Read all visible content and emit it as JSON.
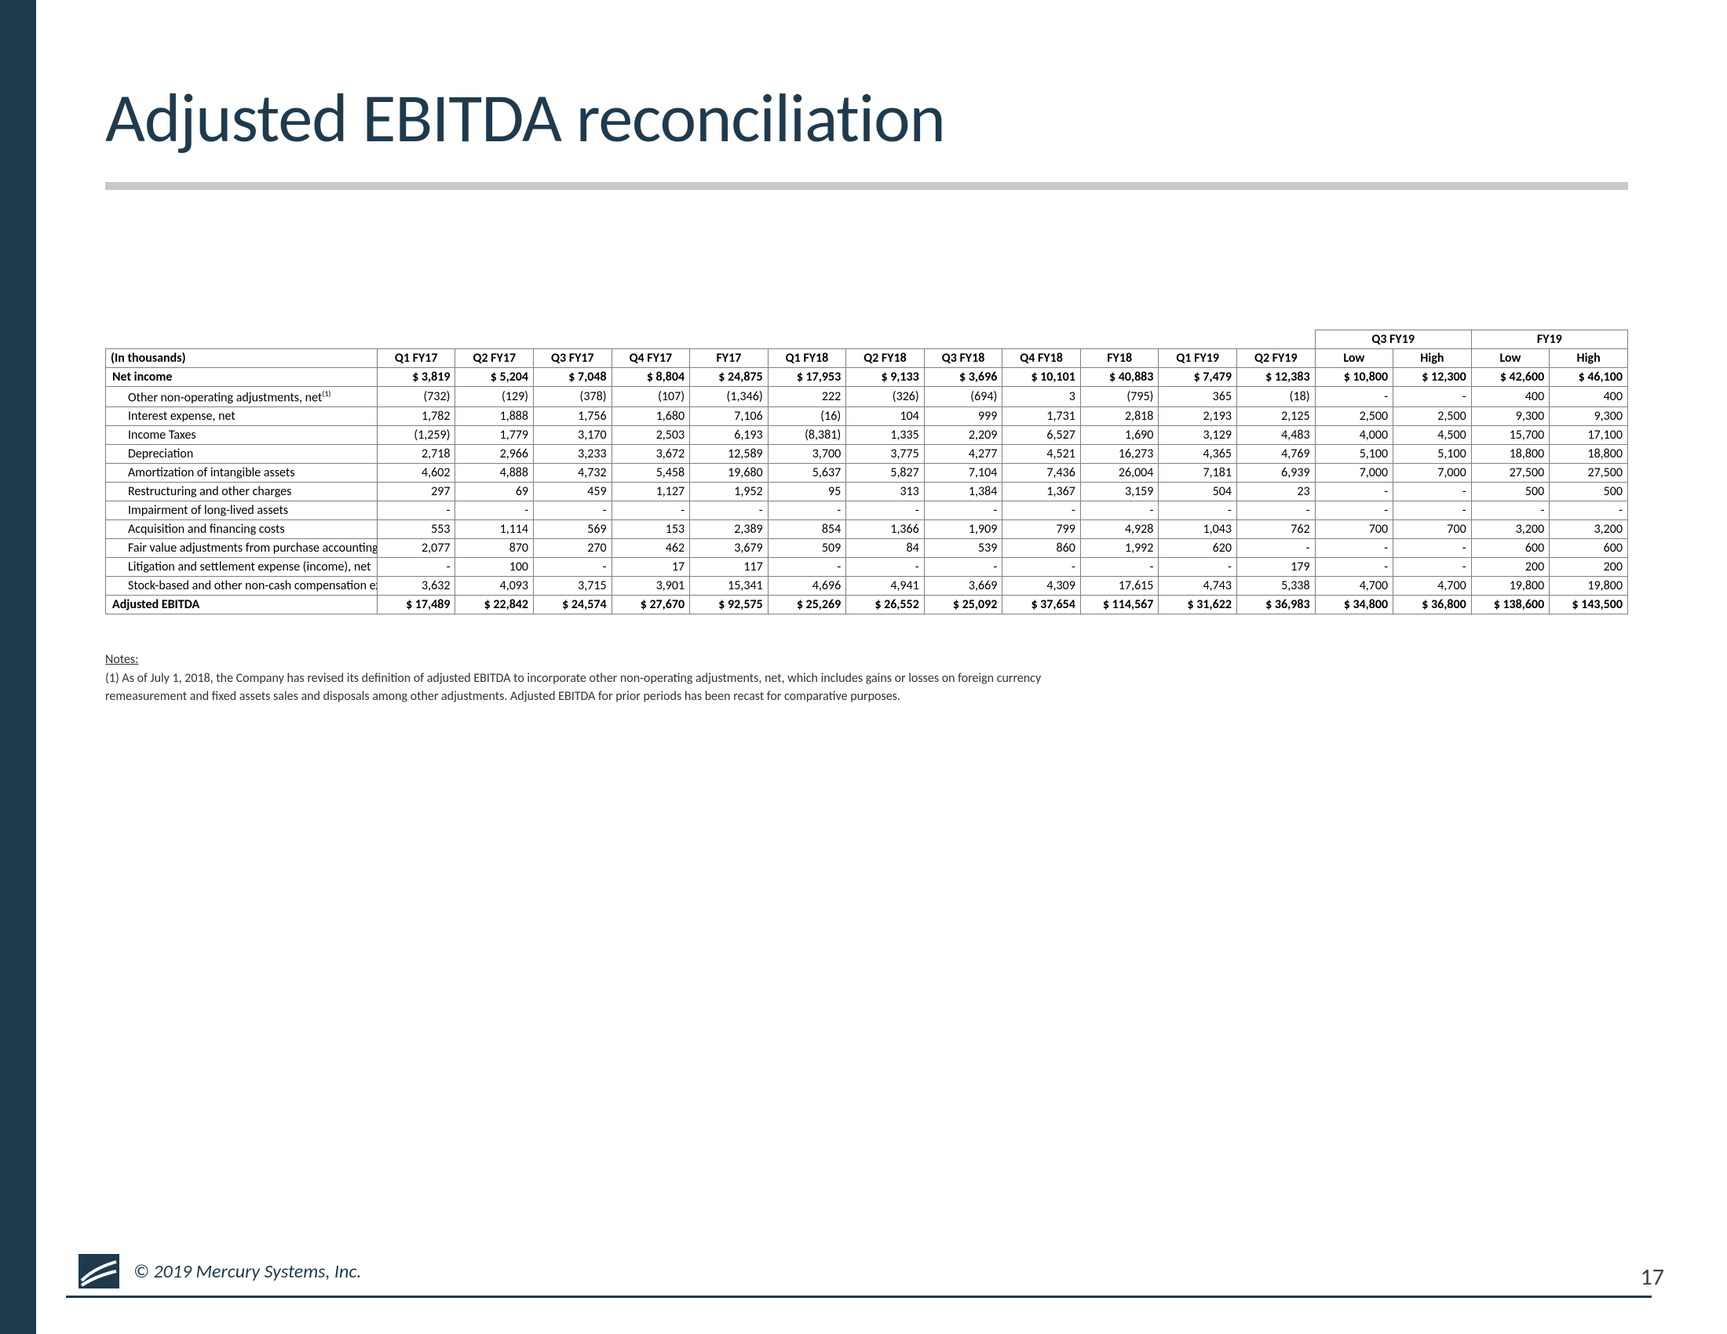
{
  "title": "Adjusted EBITDA reconciliation",
  "accent_color": "#1f3a4d",
  "rule_color": "#c9c9c9",
  "table": {
    "unit_label": "(In thousands)",
    "group_headers": [
      "Q3 FY19",
      "FY19"
    ],
    "columns": [
      "Q1 FY17",
      "Q2 FY17",
      "Q3 FY17",
      "Q4 FY17",
      "FY17",
      "Q1 FY18",
      "Q2 FY18",
      "Q3 FY18",
      "Q4 FY18",
      "FY18",
      "Q1 FY19",
      "Q2 FY19",
      "Low",
      "High",
      "Low",
      "High"
    ],
    "rows": [
      {
        "label": "Net income",
        "indent": false,
        "bold": true,
        "dollar": true,
        "vals": [
          "3,819",
          "5,204",
          "7,048",
          "8,804",
          "24,875",
          "17,953",
          "9,133",
          "3,696",
          "10,101",
          "40,883",
          "7,479",
          "12,383",
          "10,800",
          "12,300",
          "42,600",
          "46,100"
        ]
      },
      {
        "label": "Other non-operating adjustments, net",
        "sup": "(1)",
        "indent": true,
        "bold": false,
        "dollar": false,
        "vals": [
          "(732)",
          "(129)",
          "(378)",
          "(107)",
          "(1,346)",
          "222",
          "(326)",
          "(694)",
          "3",
          "(795)",
          "365",
          "(18)",
          "-",
          "-",
          "400",
          "400"
        ]
      },
      {
        "label": "Interest expense, net",
        "indent": true,
        "bold": false,
        "dollar": false,
        "vals": [
          "1,782",
          "1,888",
          "1,756",
          "1,680",
          "7,106",
          "(16)",
          "104",
          "999",
          "1,731",
          "2,818",
          "2,193",
          "2,125",
          "2,500",
          "2,500",
          "9,300",
          "9,300"
        ]
      },
      {
        "label": "Income Taxes",
        "indent": true,
        "bold": false,
        "dollar": false,
        "vals": [
          "(1,259)",
          "1,779",
          "3,170",
          "2,503",
          "6,193",
          "(8,381)",
          "1,335",
          "2,209",
          "6,527",
          "1,690",
          "3,129",
          "4,483",
          "4,000",
          "4,500",
          "15,700",
          "17,100"
        ]
      },
      {
        "label": "Depreciation",
        "indent": true,
        "bold": false,
        "dollar": false,
        "vals": [
          "2,718",
          "2,966",
          "3,233",
          "3,672",
          "12,589",
          "3,700",
          "3,775",
          "4,277",
          "4,521",
          "16,273",
          "4,365",
          "4,769",
          "5,100",
          "5,100",
          "18,800",
          "18,800"
        ]
      },
      {
        "label": "Amortization of intangible assets",
        "indent": true,
        "bold": false,
        "dollar": false,
        "vals": [
          "4,602",
          "4,888",
          "4,732",
          "5,458",
          "19,680",
          "5,637",
          "5,827",
          "7,104",
          "7,436",
          "26,004",
          "7,181",
          "6,939",
          "7,000",
          "7,000",
          "27,500",
          "27,500"
        ]
      },
      {
        "label": "Restructuring and other charges",
        "indent": true,
        "bold": false,
        "dollar": false,
        "vals": [
          "297",
          "69",
          "459",
          "1,127",
          "1,952",
          "95",
          "313",
          "1,384",
          "1,367",
          "3,159",
          "504",
          "23",
          "-",
          "-",
          "500",
          "500"
        ]
      },
      {
        "label": "Impairment of long-lived assets",
        "indent": true,
        "bold": false,
        "dollar": false,
        "vals": [
          "-",
          "-",
          "-",
          "-",
          "-",
          "-",
          "-",
          "-",
          "-",
          "-",
          "-",
          "-",
          "-",
          "-",
          "-",
          "-"
        ]
      },
      {
        "label": "Acquisition and financing costs",
        "indent": true,
        "bold": false,
        "dollar": false,
        "vals": [
          "553",
          "1,114",
          "569",
          "153",
          "2,389",
          "854",
          "1,366",
          "1,909",
          "799",
          "4,928",
          "1,043",
          "762",
          "700",
          "700",
          "3,200",
          "3,200"
        ]
      },
      {
        "label": "Fair value adjustments from purchase accounting",
        "indent": true,
        "bold": false,
        "dollar": false,
        "vals": [
          "2,077",
          "870",
          "270",
          "462",
          "3,679",
          "509",
          "84",
          "539",
          "860",
          "1,992",
          "620",
          "-",
          "-",
          "-",
          "600",
          "600"
        ]
      },
      {
        "label": "Litigation and settlement expense (income), net",
        "indent": true,
        "bold": false,
        "dollar": false,
        "vals": [
          "-",
          "100",
          "-",
          "17",
          "117",
          "-",
          "-",
          "-",
          "-",
          "-",
          "-",
          "179",
          "-",
          "-",
          "200",
          "200"
        ]
      },
      {
        "label": "Stock-based and other non-cash compensation expense",
        "indent": true,
        "bold": false,
        "dollar": false,
        "vals": [
          "3,632",
          "4,093",
          "3,715",
          "3,901",
          "15,341",
          "4,696",
          "4,941",
          "3,669",
          "4,309",
          "17,615",
          "4,743",
          "5,338",
          "4,700",
          "4,700",
          "19,800",
          "19,800"
        ]
      },
      {
        "label": "Adjusted EBITDA",
        "indent": false,
        "bold": true,
        "dollar": true,
        "vals": [
          "17,489",
          "22,842",
          "24,574",
          "27,670",
          "92,575",
          "25,269",
          "26,552",
          "25,092",
          "37,654",
          "114,567",
          "31,622",
          "36,983",
          "34,800",
          "36,800",
          "138,600",
          "143,500"
        ]
      }
    ]
  },
  "notes": {
    "heading": "Notes:",
    "lines": [
      "(1) As of July 1, 2018, the Company has revised its definition of adjusted EBITDA to incorporate other non-operating adjustments, net, which includes gains or losses on foreign currency",
      "remeasurement and fixed assets sales and disposals among other adjustments.  Adjusted EBITDA for prior periods has been recast for comparative purposes."
    ]
  },
  "footer": {
    "copyright": "© 2019 Mercury Systems, Inc.",
    "page": "17"
  }
}
